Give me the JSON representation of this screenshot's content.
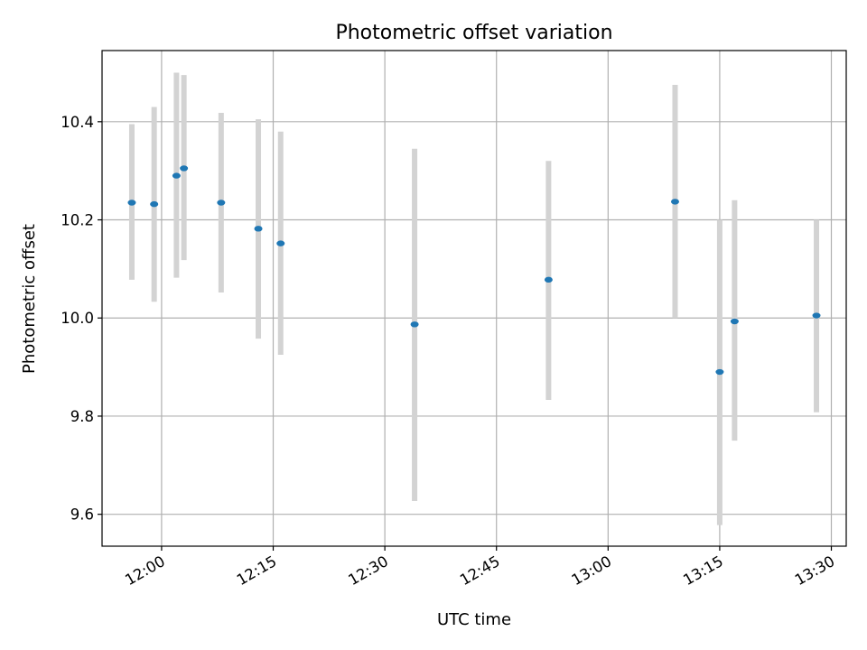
{
  "chart_data": {
    "type": "scatter",
    "title": "Photometric offset variation",
    "xlabel": "UTC time",
    "ylabel": "Photometric offset",
    "x_ticks": [
      "12:00",
      "12:15",
      "12:30",
      "12:45",
      "13:00",
      "13:15",
      "13:30"
    ],
    "y_ticks": [
      9.6,
      9.8,
      10.0,
      10.2,
      10.4
    ],
    "xlim": [
      "11:52",
      "13:32"
    ],
    "ylim": [
      9.535,
      10.545
    ],
    "grid": true,
    "colors": {
      "points": "#1f77b4",
      "errorbars": "#d3d3d3",
      "grid": "#b0b0b0"
    },
    "series": [
      {
        "points": [
          {
            "x": "11:56",
            "y": 10.235,
            "yerr_low": 10.078,
            "yerr_high": 10.395
          },
          {
            "x": "11:59",
            "y": 10.232,
            "yerr_low": 10.033,
            "yerr_high": 10.43
          },
          {
            "x": "12:02",
            "y": 10.29,
            "yerr_low": 10.082,
            "yerr_high": 10.5
          },
          {
            "x": "12:03",
            "y": 10.305,
            "yerr_low": 10.118,
            "yerr_high": 10.495
          },
          {
            "x": "12:08",
            "y": 10.235,
            "yerr_low": 10.052,
            "yerr_high": 10.418
          },
          {
            "x": "12:13",
            "y": 10.182,
            "yerr_low": 9.958,
            "yerr_high": 10.405
          },
          {
            "x": "12:16",
            "y": 10.152,
            "yerr_low": 9.925,
            "yerr_high": 10.38
          },
          {
            "x": "12:34",
            "y": 9.987,
            "yerr_low": 9.627,
            "yerr_high": 10.345
          },
          {
            "x": "12:52",
            "y": 10.078,
            "yerr_low": 9.833,
            "yerr_high": 10.32
          },
          {
            "x": "13:09",
            "y": 10.237,
            "yerr_low": 10.0,
            "yerr_high": 10.475
          },
          {
            "x": "13:15",
            "y": 9.89,
            "yerr_low": 9.578,
            "yerr_high": 10.2
          },
          {
            "x": "13:17",
            "y": 9.993,
            "yerr_low": 9.75,
            "yerr_high": 10.24
          },
          {
            "x": "13:28",
            "y": 10.005,
            "yerr_low": 9.808,
            "yerr_high": 10.2
          }
        ]
      }
    ]
  }
}
